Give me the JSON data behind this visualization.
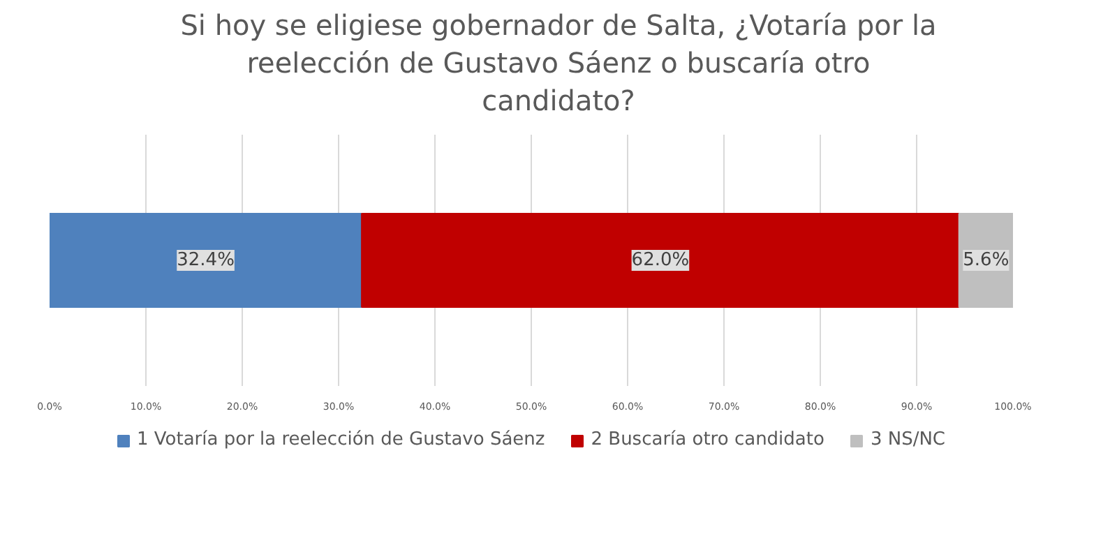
{
  "chart_data": {
    "type": "bar",
    "orientation": "horizontal",
    "stacked": true,
    "title": "Si hoy se eligiese gobernador de Salta, ¿Votaría por la reelección de Gustavo Sáenz o buscaría otro candidato?",
    "categories": [
      null
    ],
    "series": [
      {
        "name": "1 Votaría por la reelección de Gustavo Sáenz",
        "color": "#4f81bd",
        "values": [
          32.4
        ],
        "value_labels": [
          "32.4%"
        ]
      },
      {
        "name": "2 Buscaría otro candidato",
        "color": "#c00000",
        "values": [
          62.0
        ],
        "value_labels": [
          "62.0%"
        ]
      },
      {
        "name": "3 NS/NC",
        "color": "#bfbfbf",
        "values": [
          5.6
        ],
        "value_labels": [
          "5.6%"
        ]
      }
    ],
    "xlim": [
      0,
      100
    ],
    "xticks": [
      {
        "value": 0,
        "label": "0.0%"
      },
      {
        "value": 10,
        "label": "10.0%"
      },
      {
        "value": 20,
        "label": "20.0%"
      },
      {
        "value": 30,
        "label": "30.0%"
      },
      {
        "value": 40,
        "label": "40.0%"
      },
      {
        "value": 50,
        "label": "50.0%"
      },
      {
        "value": 60,
        "label": "60.0%"
      },
      {
        "value": 70,
        "label": "70.0%"
      },
      {
        "value": 80,
        "label": "80.0%"
      },
      {
        "value": 90,
        "label": "90.0%"
      },
      {
        "value": 100,
        "label": "100.0%"
      }
    ],
    "grid": "x",
    "legend": "bottom"
  }
}
